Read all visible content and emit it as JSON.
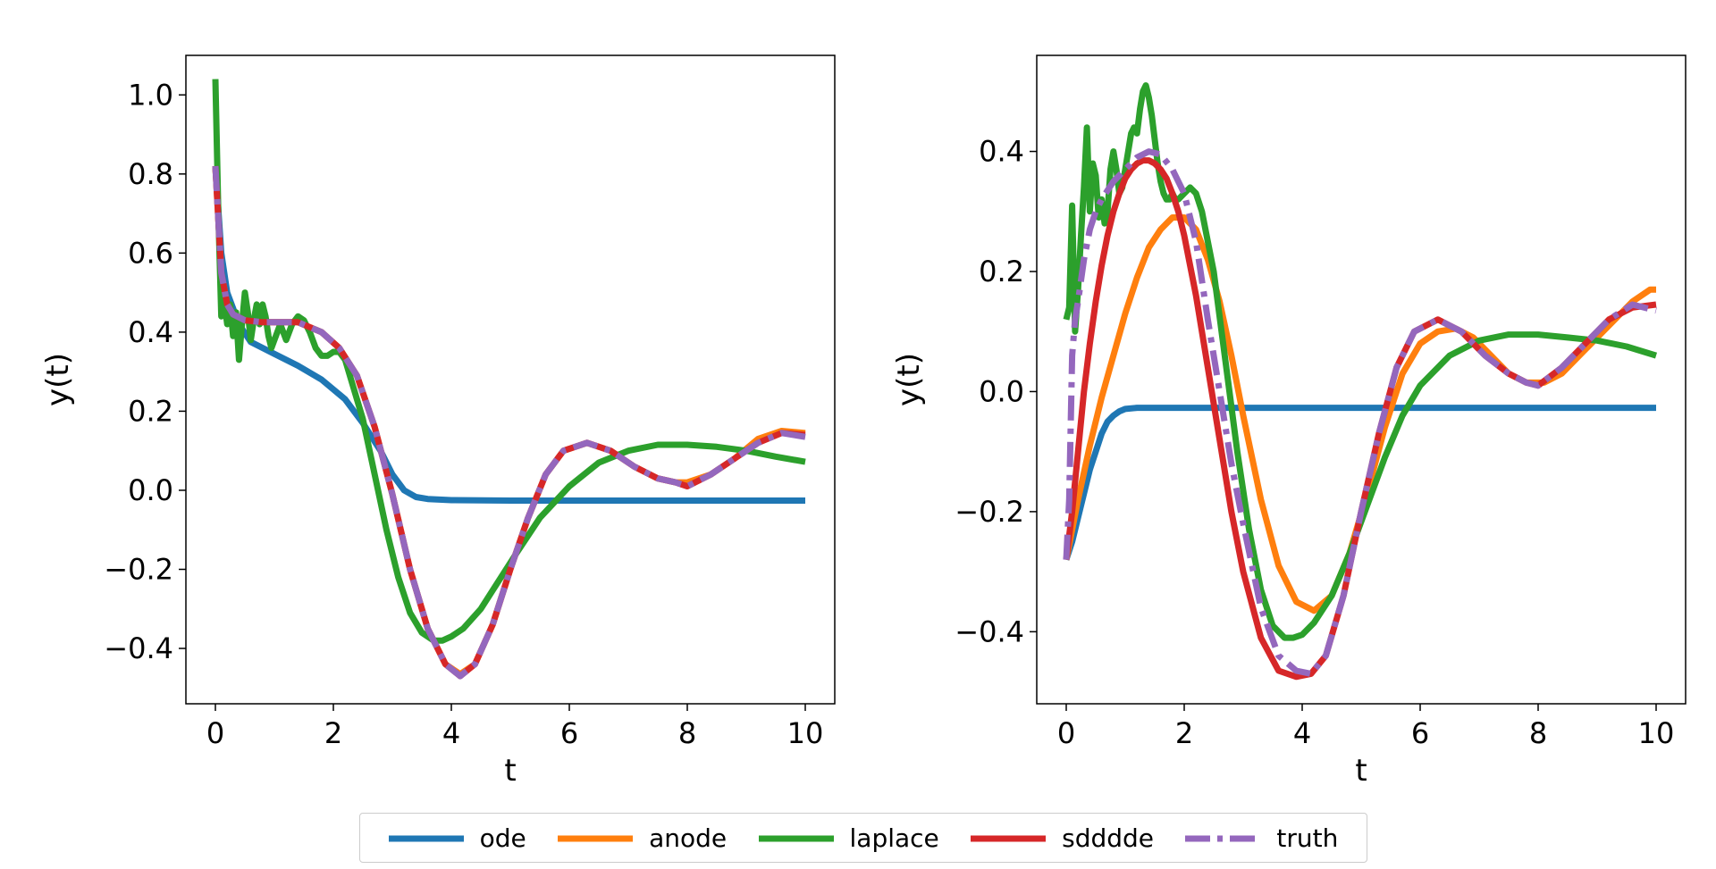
{
  "chart_data": [
    {
      "type": "line",
      "xlabel": "t",
      "ylabel": "y(t)",
      "xlim": [
        -0.5,
        10.5
      ],
      "ylim": [
        -0.54,
        1.1
      ],
      "xticks": [
        0,
        2,
        4,
        6,
        8,
        10
      ],
      "yticks": [
        -0.4,
        -0.2,
        0.0,
        0.2,
        0.4,
        0.6,
        0.8,
        1.0
      ],
      "xtick_labels": [
        "0",
        "2",
        "4",
        "6",
        "8",
        "10"
      ],
      "ytick_labels": [
        "−0.4",
        "−0.2",
        "0.0",
        "0.2",
        "0.4",
        "0.6",
        "0.8",
        "1.0"
      ],
      "series": [
        {
          "name": "ode",
          "x": [
            0,
            0.1,
            0.2,
            0.4,
            0.6,
            1.0,
            1.4,
            1.8,
            2.2,
            2.5,
            2.8,
            3.0,
            3.2,
            3.4,
            3.6,
            4.0,
            5,
            6,
            7,
            8,
            9,
            10
          ],
          "y": [
            0.82,
            0.6,
            0.5,
            0.42,
            0.375,
            0.345,
            0.315,
            0.28,
            0.23,
            0.17,
            0.1,
            0.04,
            0.0,
            -0.017,
            -0.022,
            -0.025,
            -0.026,
            -0.026,
            -0.026,
            -0.026,
            -0.026,
            -0.026
          ]
        },
        {
          "name": "anode",
          "x": [
            0,
            0.1,
            0.2,
            0.3,
            0.5,
            0.8,
            1.0,
            1.4,
            1.8,
            2.1,
            2.4,
            2.7,
            3.0,
            3.3,
            3.6,
            3.9,
            4.15,
            4.4,
            4.7,
            5.0,
            5.3,
            5.6,
            5.9,
            6.3,
            6.7,
            7.1,
            7.5,
            7.8,
            8.0,
            8.4,
            8.8,
            9.2,
            9.6,
            10
          ],
          "y": [
            0.82,
            0.55,
            0.47,
            0.445,
            0.43,
            0.425,
            0.425,
            0.425,
            0.4,
            0.36,
            0.29,
            0.16,
            -0.01,
            -0.2,
            -0.35,
            -0.44,
            -0.465,
            -0.44,
            -0.34,
            -0.2,
            -0.07,
            0.04,
            0.1,
            0.12,
            0.1,
            0.06,
            0.03,
            0.02,
            0.02,
            0.04,
            0.08,
            0.13,
            0.15,
            0.145
          ]
        },
        {
          "name": "laplace",
          "x": [
            0,
            0.05,
            0.1,
            0.15,
            0.2,
            0.25,
            0.3,
            0.35,
            0.4,
            0.45,
            0.5,
            0.55,
            0.6,
            0.65,
            0.7,
            0.75,
            0.8,
            0.85,
            0.9,
            0.95,
            1.0,
            1.1,
            1.2,
            1.3,
            1.4,
            1.5,
            1.6,
            1.7,
            1.8,
            1.9,
            2.0,
            2.1,
            2.2,
            2.3,
            2.5,
            2.7,
            2.9,
            3.1,
            3.3,
            3.5,
            3.7,
            3.85,
            4.0,
            4.2,
            4.5,
            4.8,
            5.1,
            5.5,
            6.0,
            6.5,
            7.0,
            7.5,
            8.0,
            8.5,
            9.0,
            9.5,
            10
          ],
          "y": [
            1.04,
            0.7,
            0.44,
            0.48,
            0.42,
            0.47,
            0.39,
            0.45,
            0.33,
            0.42,
            0.5,
            0.45,
            0.38,
            0.43,
            0.47,
            0.42,
            0.47,
            0.44,
            0.39,
            0.36,
            0.38,
            0.42,
            0.38,
            0.42,
            0.44,
            0.43,
            0.4,
            0.36,
            0.34,
            0.34,
            0.35,
            0.35,
            0.33,
            0.28,
            0.18,
            0.04,
            -0.1,
            -0.22,
            -0.31,
            -0.36,
            -0.38,
            -0.38,
            -0.37,
            -0.35,
            -0.3,
            -0.23,
            -0.16,
            -0.07,
            0.01,
            0.07,
            0.1,
            0.115,
            0.115,
            0.11,
            0.1,
            0.085,
            0.072
          ]
        },
        {
          "name": "sdddde",
          "x": [
            0,
            0.1,
            0.2,
            0.3,
            0.5,
            0.8,
            1.0,
            1.4,
            1.8,
            2.1,
            2.4,
            2.7,
            3.0,
            3.3,
            3.6,
            3.9,
            4.15,
            4.4,
            4.7,
            5.0,
            5.3,
            5.6,
            5.9,
            6.3,
            6.7,
            7.1,
            7.5,
            7.8,
            8.0,
            8.4,
            8.8,
            9.2,
            9.6,
            10
          ],
          "y": [
            0.82,
            0.55,
            0.47,
            0.445,
            0.43,
            0.425,
            0.425,
            0.425,
            0.4,
            0.36,
            0.29,
            0.16,
            -0.01,
            -0.2,
            -0.35,
            -0.44,
            -0.47,
            -0.44,
            -0.34,
            -0.2,
            -0.07,
            0.04,
            0.1,
            0.12,
            0.1,
            0.06,
            0.03,
            0.02,
            0.01,
            0.04,
            0.08,
            0.12,
            0.145,
            0.14
          ]
        },
        {
          "name": "truth",
          "x": [
            0,
            0.1,
            0.2,
            0.3,
            0.5,
            0.8,
            1.0,
            1.4,
            1.8,
            2.1,
            2.4,
            2.7,
            3.0,
            3.3,
            3.6,
            3.9,
            4.15,
            4.4,
            4.7,
            5.0,
            5.3,
            5.6,
            5.9,
            6.3,
            6.7,
            7.1,
            7.5,
            7.8,
            8.0,
            8.4,
            8.8,
            9.2,
            9.6,
            10
          ],
          "y": [
            0.82,
            0.55,
            0.47,
            0.445,
            0.43,
            0.425,
            0.425,
            0.425,
            0.4,
            0.36,
            0.29,
            0.16,
            -0.01,
            -0.2,
            -0.35,
            -0.44,
            -0.47,
            -0.44,
            -0.34,
            -0.2,
            -0.07,
            0.04,
            0.1,
            0.12,
            0.1,
            0.06,
            0.03,
            0.02,
            0.01,
            0.04,
            0.08,
            0.12,
            0.145,
            0.135
          ]
        }
      ]
    },
    {
      "type": "line",
      "xlabel": "t",
      "ylabel": "y(t)",
      "xlim": [
        -0.5,
        10.5
      ],
      "ylim": [
        -0.52,
        0.56
      ],
      "xticks": [
        0,
        2,
        4,
        6,
        8,
        10
      ],
      "yticks": [
        -0.4,
        -0.2,
        0.0,
        0.2,
        0.4
      ],
      "xtick_labels": [
        "0",
        "2",
        "4",
        "6",
        "8",
        "10"
      ],
      "ytick_labels": [
        "−0.4",
        "−0.2",
        "0.0",
        "0.2",
        "0.4"
      ],
      "series": [
        {
          "name": "ode",
          "x": [
            0,
            0.1,
            0.2,
            0.3,
            0.4,
            0.5,
            0.6,
            0.7,
            0.8,
            0.9,
            1.0,
            1.2,
            1.5,
            2,
            3,
            4,
            5,
            6,
            7,
            8,
            9,
            10
          ],
          "y": [
            -0.28,
            -0.25,
            -0.21,
            -0.17,
            -0.13,
            -0.1,
            -0.07,
            -0.05,
            -0.04,
            -0.033,
            -0.029,
            -0.027,
            -0.027,
            -0.027,
            -0.027,
            -0.027,
            -0.027,
            -0.027,
            -0.027,
            -0.027,
            -0.027,
            -0.027
          ]
        },
        {
          "name": "anode",
          "x": [
            0,
            0.2,
            0.4,
            0.6,
            0.8,
            1.0,
            1.2,
            1.4,
            1.6,
            1.8,
            2.0,
            2.2,
            2.4,
            2.6,
            2.8,
            3.0,
            3.3,
            3.6,
            3.9,
            4.2,
            4.5,
            4.8,
            5.1,
            5.4,
            5.7,
            6.0,
            6.3,
            6.6,
            6.9,
            7.2,
            7.5,
            7.8,
            8.1,
            8.4,
            8.7,
            9.0,
            9.3,
            9.6,
            9.9,
            10
          ],
          "y": [
            -0.28,
            -0.18,
            -0.09,
            -0.01,
            0.06,
            0.13,
            0.19,
            0.24,
            0.27,
            0.29,
            0.29,
            0.27,
            0.22,
            0.15,
            0.06,
            -0.04,
            -0.18,
            -0.29,
            -0.35,
            -0.365,
            -0.34,
            -0.27,
            -0.17,
            -0.06,
            0.03,
            0.08,
            0.1,
            0.105,
            0.09,
            0.06,
            0.03,
            0.015,
            0.015,
            0.03,
            0.06,
            0.09,
            0.12,
            0.15,
            0.17,
            0.17
          ]
        },
        {
          "name": "laplace",
          "x": [
            0,
            0.05,
            0.1,
            0.15,
            0.2,
            0.25,
            0.3,
            0.35,
            0.4,
            0.45,
            0.5,
            0.55,
            0.6,
            0.65,
            0.7,
            0.75,
            0.8,
            0.85,
            0.9,
            0.95,
            1.0,
            1.05,
            1.1,
            1.15,
            1.2,
            1.25,
            1.3,
            1.35,
            1.4,
            1.45,
            1.5,
            1.55,
            1.6,
            1.65,
            1.7,
            1.75,
            1.8,
            1.85,
            1.9,
            2.0,
            2.1,
            2.2,
            2.3,
            2.5,
            2.7,
            2.9,
            3.1,
            3.3,
            3.5,
            3.7,
            3.85,
            4.0,
            4.2,
            4.5,
            4.8,
            5.1,
            5.4,
            5.7,
            6.0,
            6.5,
            7.0,
            7.5,
            8.0,
            8.5,
            9.0,
            9.5,
            10
          ],
          "y": [
            0.12,
            0.14,
            0.31,
            0.1,
            0.17,
            0.26,
            0.34,
            0.44,
            0.3,
            0.38,
            0.36,
            0.29,
            0.32,
            0.28,
            0.3,
            0.37,
            0.4,
            0.37,
            0.33,
            0.34,
            0.37,
            0.4,
            0.43,
            0.44,
            0.43,
            0.47,
            0.5,
            0.51,
            0.49,
            0.46,
            0.42,
            0.38,
            0.35,
            0.33,
            0.32,
            0.32,
            0.33,
            0.32,
            0.32,
            0.33,
            0.34,
            0.33,
            0.3,
            0.2,
            0.05,
            -0.1,
            -0.23,
            -0.33,
            -0.39,
            -0.41,
            -0.41,
            -0.405,
            -0.385,
            -0.34,
            -0.27,
            -0.19,
            -0.11,
            -0.04,
            0.01,
            0.06,
            0.085,
            0.095,
            0.095,
            0.09,
            0.085,
            0.075,
            0.06
          ]
        },
        {
          "name": "sdddde",
          "x": [
            0,
            0.1,
            0.2,
            0.3,
            0.4,
            0.5,
            0.6,
            0.7,
            0.8,
            0.9,
            1.0,
            1.1,
            1.2,
            1.3,
            1.4,
            1.5,
            1.6,
            1.7,
            1.8,
            1.9,
            2.0,
            2.2,
            2.4,
            2.6,
            2.8,
            3.0,
            3.3,
            3.6,
            3.9,
            4.15,
            4.4,
            4.7,
            5.0,
            5.3,
            5.6,
            5.9,
            6.3,
            6.7,
            7.1,
            7.5,
            7.8,
            8.0,
            8.4,
            8.8,
            9.2,
            9.6,
            10
          ],
          "y": [
            -0.28,
            -0.2,
            -0.1,
            0.0,
            0.08,
            0.15,
            0.21,
            0.26,
            0.3,
            0.33,
            0.355,
            0.37,
            0.38,
            0.385,
            0.385,
            0.38,
            0.37,
            0.355,
            0.33,
            0.3,
            0.26,
            0.16,
            0.04,
            -0.08,
            -0.2,
            -0.3,
            -0.41,
            -0.465,
            -0.475,
            -0.47,
            -0.44,
            -0.34,
            -0.2,
            -0.07,
            0.04,
            0.1,
            0.12,
            0.1,
            0.06,
            0.03,
            0.015,
            0.01,
            0.04,
            0.08,
            0.12,
            0.14,
            0.145
          ]
        },
        {
          "name": "truth",
          "x": [
            0,
            0.05,
            0.1,
            0.15,
            0.2,
            0.3,
            0.4,
            0.5,
            0.6,
            0.8,
            1.0,
            1.2,
            1.4,
            1.6,
            1.8,
            2.0,
            2.2,
            2.4,
            2.6,
            2.8,
            3.0,
            3.3,
            3.6,
            3.9,
            4.15,
            4.4,
            4.7,
            5.0,
            5.3,
            5.6,
            5.9,
            6.3,
            6.7,
            7.1,
            7.5,
            7.8,
            8.0,
            8.4,
            8.8,
            9.2,
            9.6,
            10
          ],
          "y": [
            -0.28,
            -0.18,
            0.06,
            0.12,
            0.15,
            0.22,
            0.27,
            0.3,
            0.32,
            0.35,
            0.37,
            0.39,
            0.4,
            0.395,
            0.37,
            0.33,
            0.25,
            0.12,
            0.0,
            -0.12,
            -0.22,
            -0.36,
            -0.44,
            -0.465,
            -0.47,
            -0.44,
            -0.34,
            -0.2,
            -0.07,
            0.04,
            0.1,
            0.12,
            0.1,
            0.06,
            0.03,
            0.015,
            0.01,
            0.04,
            0.08,
            0.12,
            0.145,
            0.135
          ]
        }
      ]
    }
  ],
  "legend": {
    "placement": "bottom-center",
    "entries": [
      {
        "label": "ode",
        "color": "#1f77b4",
        "style": "solid"
      },
      {
        "label": "anode",
        "color": "#ff7f0e",
        "style": "solid"
      },
      {
        "label": "laplace",
        "color": "#2ca02c",
        "style": "solid"
      },
      {
        "label": "sdddde",
        "color": "#d62728",
        "style": "solid"
      },
      {
        "label": "truth",
        "color": "#9467bd",
        "style": "dashdot"
      }
    ]
  }
}
